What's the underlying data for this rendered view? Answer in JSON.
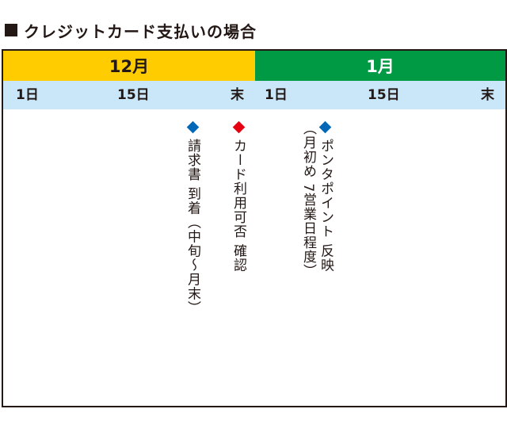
{
  "title": "クレジットカード支払いの場合",
  "months": {
    "first": "12月",
    "second": "1月"
  },
  "days": {
    "first": [
      "1日",
      "15日",
      "末"
    ],
    "second": [
      "1日",
      "15日",
      "末"
    ]
  },
  "events": [
    {
      "text": "請求書 到着（中旬〜月末）",
      "color": "#0068b7"
    },
    {
      "text": "カード利用可否 確認",
      "color": "#e60012"
    },
    {
      "text": "ポンタポイント 反映",
      "sub": "（月初め 7営業日程度）",
      "color": "#0068b7"
    }
  ],
  "colors": {
    "dec_band": "#ffcc00",
    "jan_band": "#009944",
    "day_band": "#c9e7f8"
  }
}
